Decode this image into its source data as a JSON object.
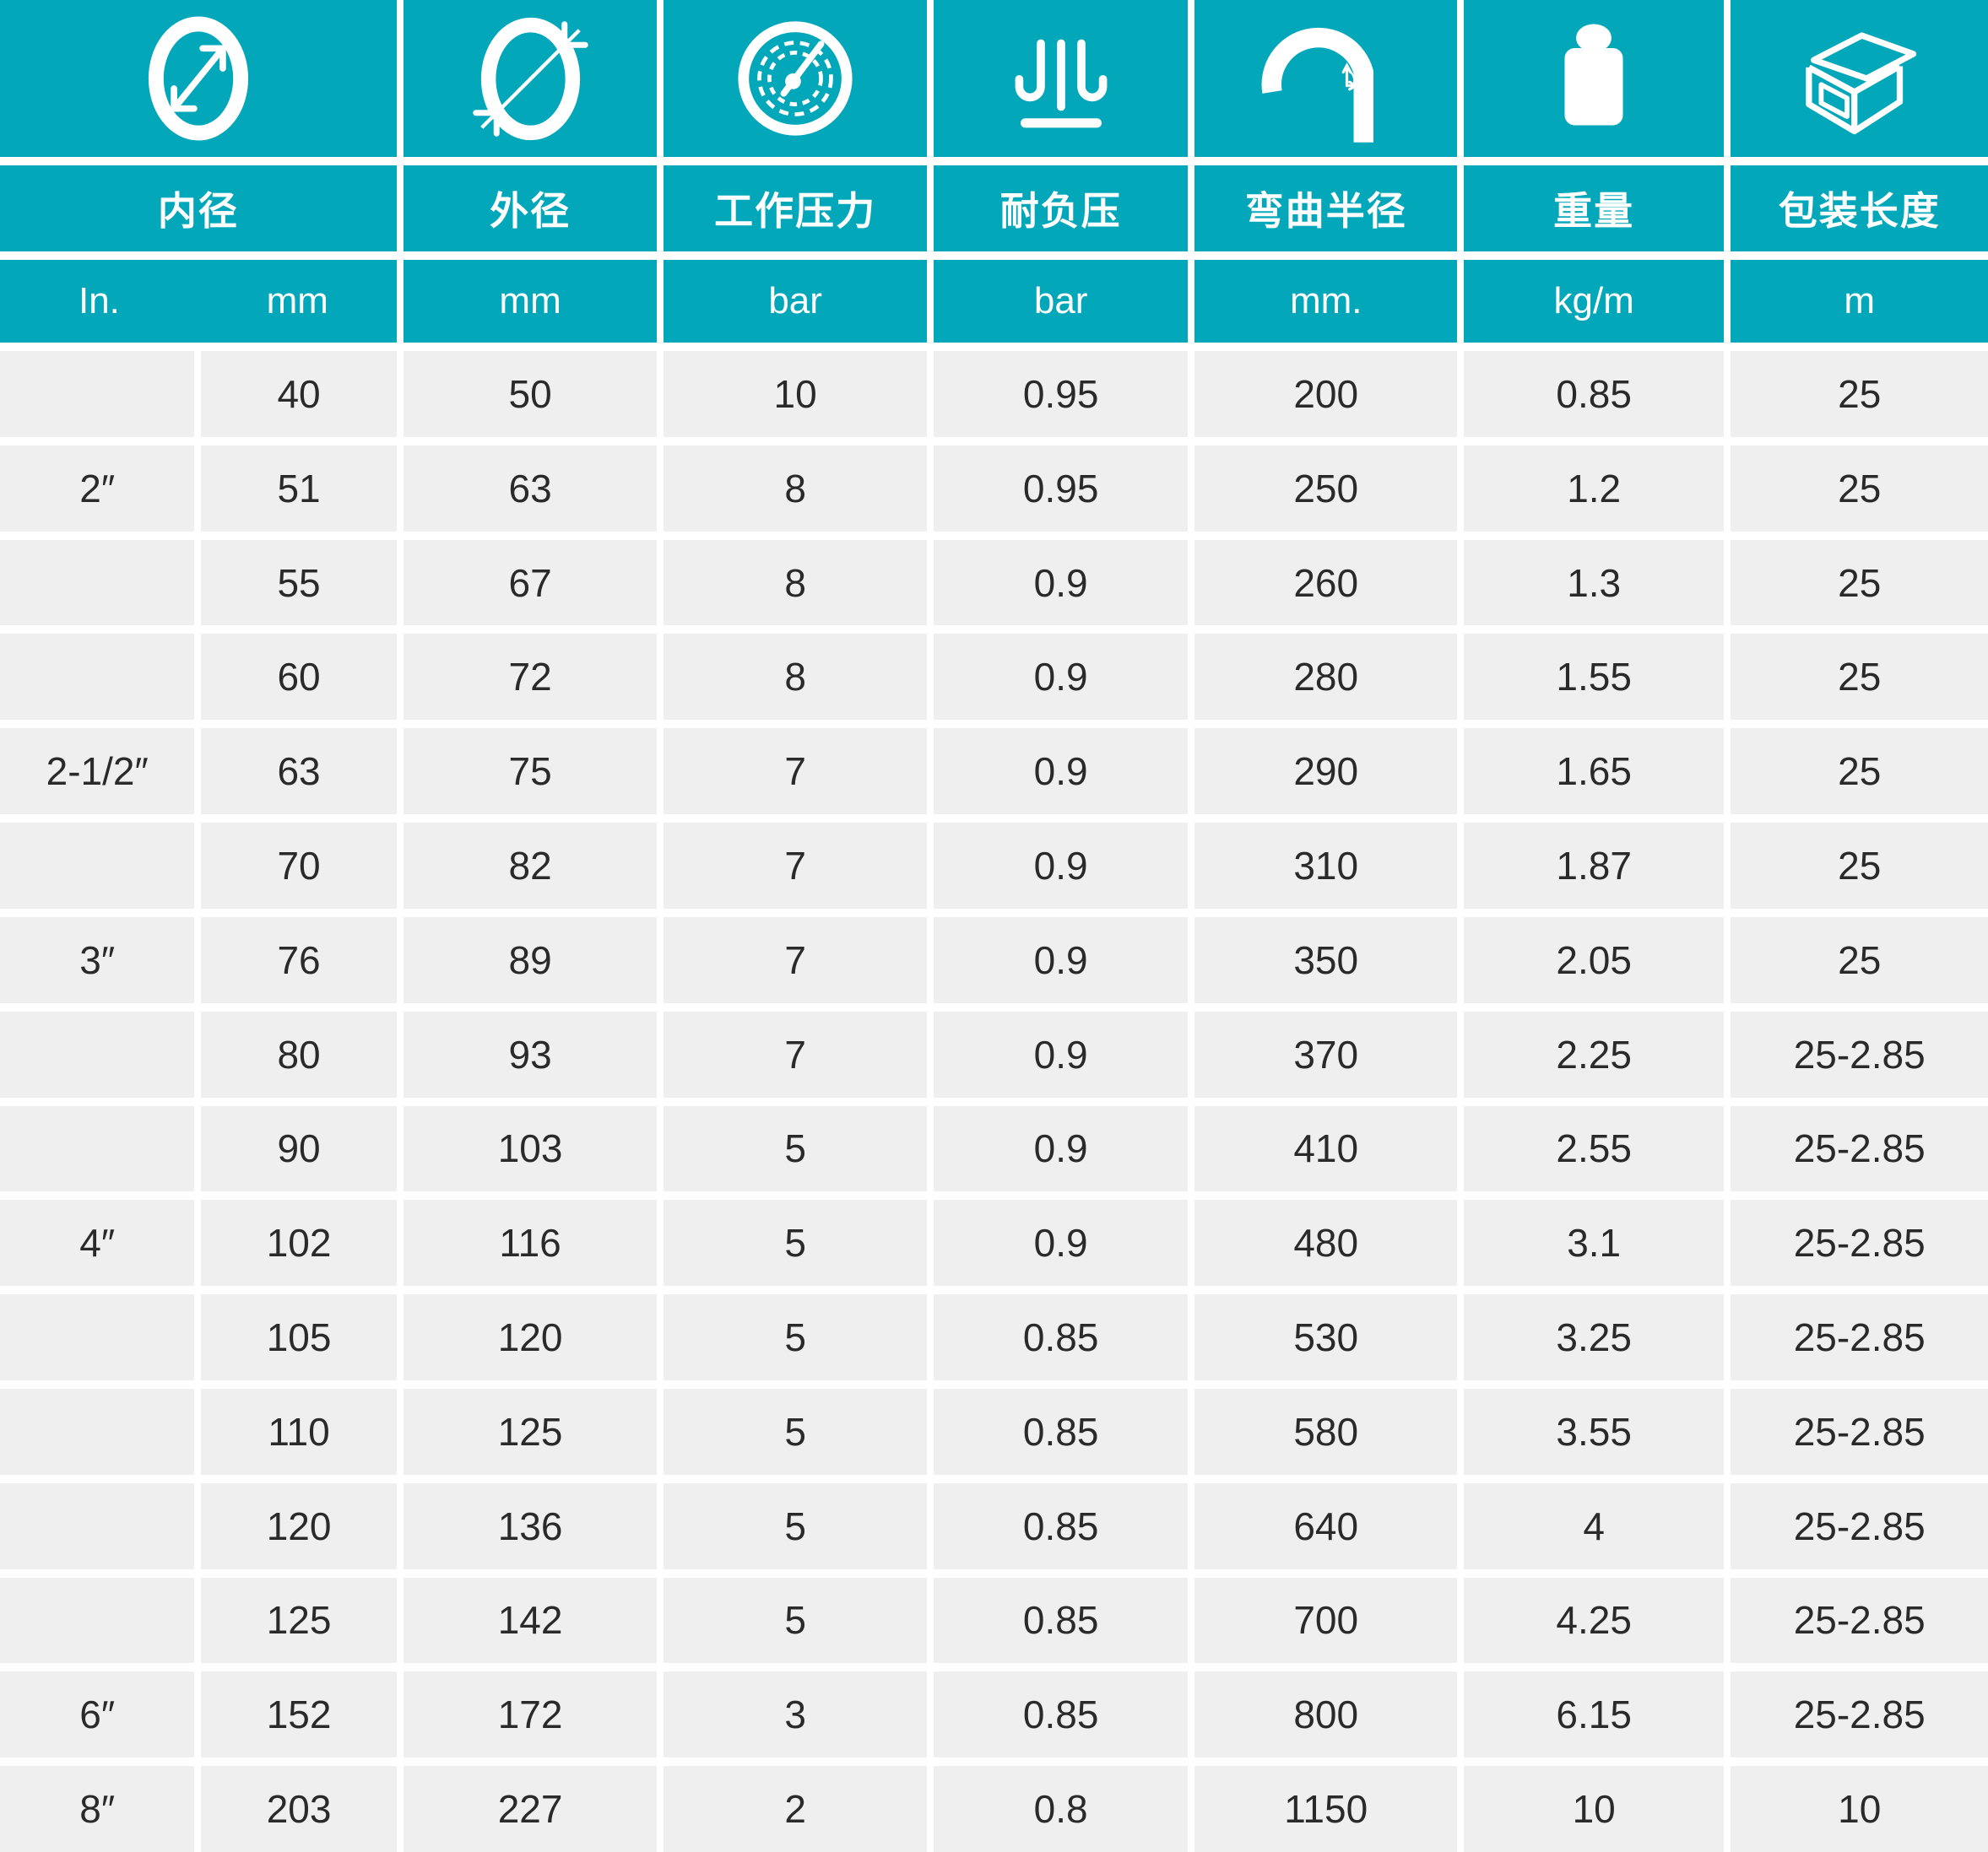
{
  "colors": {
    "accent": "#02a7ba",
    "cell_background": "#efefef",
    "text": "#2a2a2a",
    "divider": "#ffffff"
  },
  "header": {
    "columns": [
      {
        "icon": "inner-diameter-icon",
        "label": "内径"
      },
      {
        "icon": "outer-diameter-icon",
        "label": "外径"
      },
      {
        "icon": "pressure-gauge-icon",
        "label": "工作压力"
      },
      {
        "icon": "vacuum-resistance-icon",
        "label": "耐负压"
      },
      {
        "icon": "bend-radius-icon",
        "label": "弯曲半径"
      },
      {
        "icon": "weight-icon",
        "label": "重量"
      },
      {
        "icon": "package-length-icon",
        "label": "包装长度"
      }
    ],
    "units": [
      "In.",
      "mm",
      "mm",
      "bar",
      "bar",
      "mm.",
      "kg/m",
      "m"
    ]
  },
  "rows": [
    [
      "",
      "40",
      "50",
      "10",
      "0.95",
      "200",
      "0.85",
      "25"
    ],
    [
      "2″",
      "51",
      "63",
      "8",
      "0.95",
      "250",
      "1.2",
      "25"
    ],
    [
      "",
      "55",
      "67",
      "8",
      "0.9",
      "260",
      "1.3",
      "25"
    ],
    [
      "",
      "60",
      "72",
      "8",
      "0.9",
      "280",
      "1.55",
      "25"
    ],
    [
      "2-1/2″",
      "63",
      "75",
      "7",
      "0.9",
      "290",
      "1.65",
      "25"
    ],
    [
      "",
      "70",
      "82",
      "7",
      "0.9",
      "310",
      "1.87",
      "25"
    ],
    [
      "3″",
      "76",
      "89",
      "7",
      "0.9",
      "350",
      "2.05",
      "25"
    ],
    [
      "",
      "80",
      "93",
      "7",
      "0.9",
      "370",
      "2.25",
      "25-2.85"
    ],
    [
      "",
      "90",
      "103",
      "5",
      "0.9",
      "410",
      "2.55",
      "25-2.85"
    ],
    [
      "4″",
      "102",
      "116",
      "5",
      "0.9",
      "480",
      "3.1",
      "25-2.85"
    ],
    [
      "",
      "105",
      "120",
      "5",
      "0.85",
      "530",
      "3.25",
      "25-2.85"
    ],
    [
      "",
      "110",
      "125",
      "5",
      "0.85",
      "580",
      "3.55",
      "25-2.85"
    ],
    [
      "",
      "120",
      "136",
      "5",
      "0.85",
      "640",
      "4",
      "25-2.85"
    ],
    [
      "",
      "125",
      "142",
      "5",
      "0.85",
      "700",
      "4.25",
      "25-2.85"
    ],
    [
      "6″",
      "152",
      "172",
      "3",
      "0.85",
      "800",
      "6.15",
      "25-2.85"
    ],
    [
      "8″",
      "203",
      "227",
      "2",
      "0.8",
      "1150",
      "10",
      "10"
    ]
  ]
}
